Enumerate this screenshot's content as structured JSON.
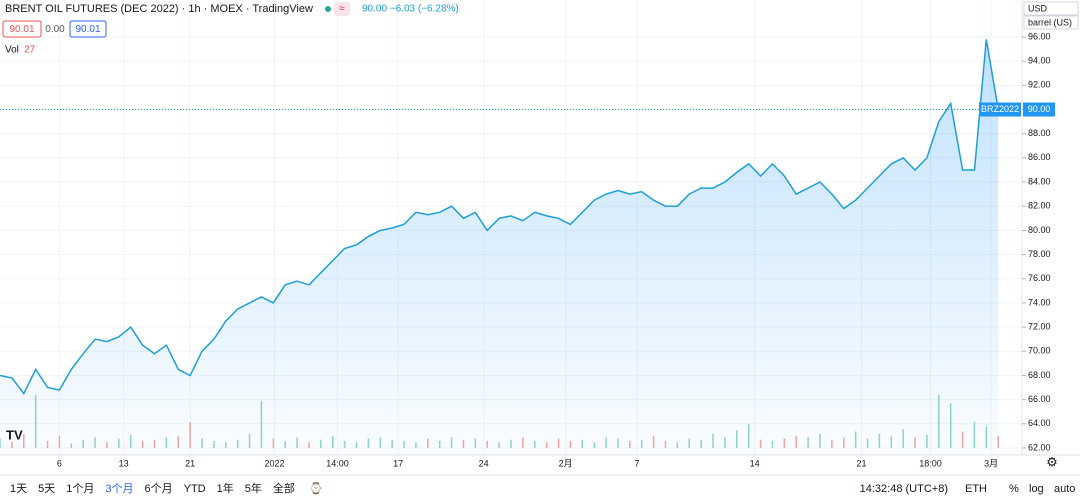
{
  "chart_data": {
    "type": "line",
    "title": "BRENT OIL FUTURES (DEC 2022) · 1h · MOEX · TradingView",
    "quote": "90.00 −6.03 (−6.28%)",
    "ohlc_labels": [
      "90.01",
      "0.00",
      "90.01"
    ],
    "volume_label": "Vol",
    "volume_value": "27",
    "currency": "USD",
    "unit": "barrel (US)",
    "symbol": "BRZ2022",
    "last_price": {
      "value": 90.0,
      "label": "90.00"
    },
    "color": "#2196f3",
    "series": [
      {
        "name": "BRZ2022",
        "color": "#1e9fd8",
        "values": [
          68.0,
          67.8,
          66.5,
          68.5,
          67.0,
          66.8,
          68.5,
          69.8,
          71.0,
          70.8,
          71.2,
          72.0,
          70.5,
          69.8,
          70.5,
          68.5,
          68.0,
          70.0,
          71.0,
          72.5,
          73.5,
          74.0,
          74.5,
          74.0,
          75.5,
          75.8,
          75.5,
          76.5,
          77.5,
          78.5,
          78.8,
          79.5,
          80.0,
          80.2,
          80.5,
          81.5,
          81.3,
          81.5,
          82.0,
          81.0,
          81.5,
          80.0,
          81.0,
          81.2,
          80.8,
          81.5,
          81.2,
          81.0,
          80.5,
          81.5,
          82.5,
          83.0,
          83.3,
          83.0,
          83.2,
          82.5,
          82.0,
          82.0,
          83.0,
          83.5,
          83.5,
          84.0,
          84.8,
          85.5,
          84.5,
          85.5,
          84.5,
          83.0,
          83.5,
          84.0,
          83.0,
          81.8,
          82.5,
          83.5,
          84.5,
          85.5,
          86.0,
          85.0,
          86.0,
          89.0,
          90.5,
          85.0,
          85.0,
          95.8,
          90.0
        ]
      }
    ],
    "volume": {
      "color_up": "#8fd3cc",
      "color_down": "#f5a3a0",
      "ylim": [
        0,
        100
      ],
      "values": [
        8,
        5,
        12,
        45,
        6,
        10,
        4,
        7,
        9,
        5,
        8,
        11,
        6,
        7,
        9,
        10,
        22,
        8,
        6,
        5,
        7,
        12,
        40,
        8,
        6,
        9,
        5,
        7,
        10,
        6,
        5,
        8,
        9,
        7,
        6,
        5,
        8,
        6,
        9,
        7,
        8,
        6,
        5,
        7,
        9,
        6,
        5,
        8,
        6,
        7,
        5,
        9,
        8,
        6,
        7,
        10,
        6,
        5,
        8,
        7,
        12,
        9,
        15,
        20,
        7,
        6,
        8,
        10,
        9,
        12,
        7,
        9,
        14,
        8,
        12,
        10,
        16,
        9,
        11,
        45,
        38,
        14,
        22,
        18,
        10
      ]
    },
    "xlim": [
      0,
      86
    ],
    "xticks": [
      {
        "value": 5,
        "label": "6"
      },
      {
        "value": 10.4,
        "label": "13"
      },
      {
        "value": 16,
        "label": "21"
      },
      {
        "value": 23.1,
        "label": "2022"
      },
      {
        "value": 28.4,
        "label": "14:00"
      },
      {
        "value": 33.5,
        "label": "17"
      },
      {
        "value": 40.7,
        "label": "24"
      },
      {
        "value": 47.6,
        "label": "2月"
      },
      {
        "value": 53.6,
        "label": "7"
      },
      {
        "value": 63.5,
        "label": "14"
      },
      {
        "value": 72.5,
        "label": "21"
      },
      {
        "value": 78.3,
        "label": "18:00"
      },
      {
        "value": 83.4,
        "label": "3月"
      }
    ],
    "ylim": [
      61.42,
      99.06
    ],
    "yticks": [
      {
        "value": 62,
        "label": "62.00"
      },
      {
        "value": 64,
        "label": "64.00"
      },
      {
        "value": 66,
        "label": "66.00"
      },
      {
        "value": 68,
        "label": "68.00"
      },
      {
        "value": 70,
        "label": "70.00"
      },
      {
        "value": 72,
        "label": "72.00"
      },
      {
        "value": 74,
        "label": "74.00"
      },
      {
        "value": 76,
        "label": "76.00"
      },
      {
        "value": 78,
        "label": "78.00"
      },
      {
        "value": 80,
        "label": "80.00"
      },
      {
        "value": 82,
        "label": "82.00"
      },
      {
        "value": 84,
        "label": "84.00"
      },
      {
        "value": 86,
        "label": "86.00"
      },
      {
        "value": 88,
        "label": "88.00"
      },
      {
        "value": 90,
        "label": "90.00"
      },
      {
        "value": 92,
        "label": "92.00"
      },
      {
        "value": 94,
        "label": "94.00"
      },
      {
        "value": 96,
        "label": "96.00"
      }
    ],
    "toolbar": [
      "1天",
      "5天",
      "1个月",
      "3个月",
      "6个月",
      "YTD",
      "1年",
      "5年",
      "全部"
    ],
    "active_range": "3个月",
    "clock": "14:32:48 (UTC+8)",
    "session": "ETH",
    "scale_options": [
      "%",
      "log",
      "auto"
    ]
  }
}
